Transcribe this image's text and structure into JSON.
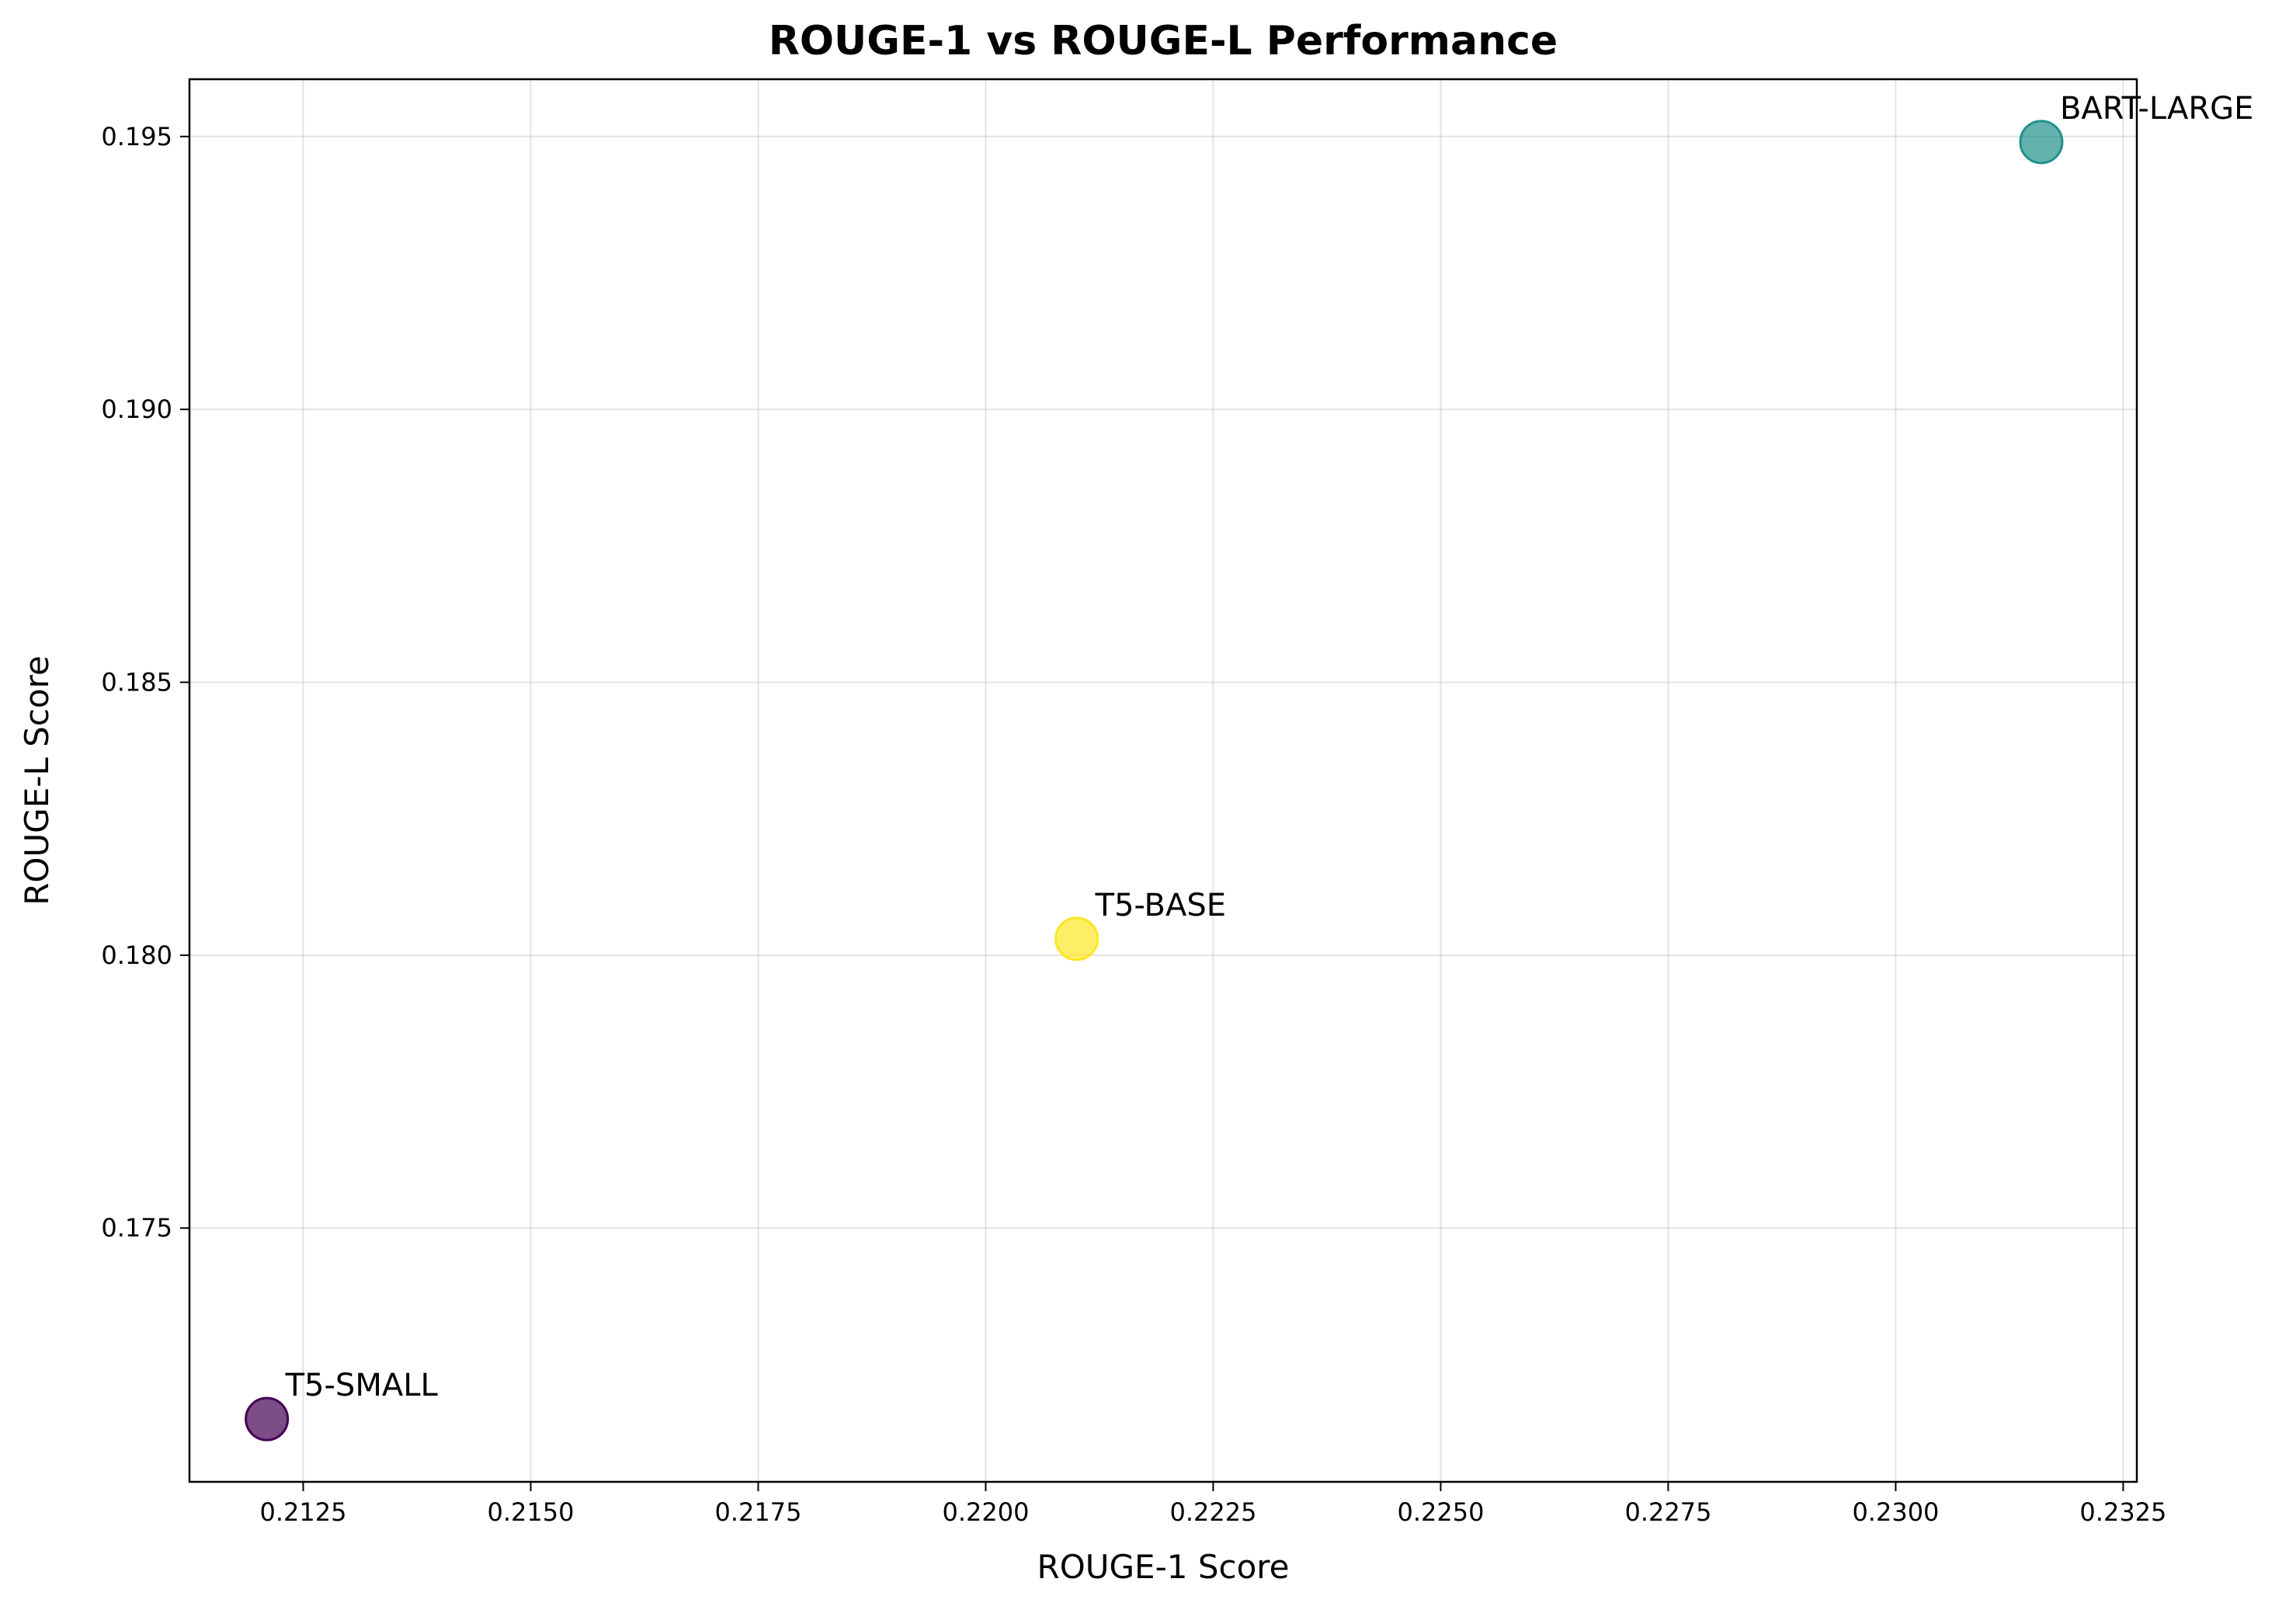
{
  "chart_data": {
    "type": "scatter",
    "title": "ROUGE-1 vs ROUGE-L Performance",
    "xlabel": "ROUGE-1 Score",
    "ylabel": "ROUGE-L Score",
    "xlim": [
      0.21125,
      0.23265
    ],
    "ylim": [
      0.17035,
      0.19605
    ],
    "xticks": [
      0.2125,
      0.215,
      0.2175,
      0.22,
      0.2225,
      0.225,
      0.2275,
      0.23,
      0.2325
    ],
    "xtick_labels": [
      "0.2125",
      "0.2150",
      "0.2175",
      "0.2200",
      "0.2225",
      "0.2250",
      "0.2275",
      "0.2300",
      "0.2325"
    ],
    "yticks": [
      0.175,
      0.18,
      0.185,
      0.19,
      0.195
    ],
    "ytick_labels": [
      "0.175",
      "0.180",
      "0.185",
      "0.190",
      "0.195"
    ],
    "grid": true,
    "points": [
      {
        "label": "T5-SMALL",
        "x": 0.2121,
        "y": 0.1715,
        "color": "#440154"
      },
      {
        "label": "T5-BASE",
        "x": 0.221,
        "y": 0.1803,
        "color": "#fde725"
      },
      {
        "label": "BART-LARGE",
        "x": 0.2316,
        "y": 0.1949,
        "color": "#21918c"
      }
    ]
  }
}
